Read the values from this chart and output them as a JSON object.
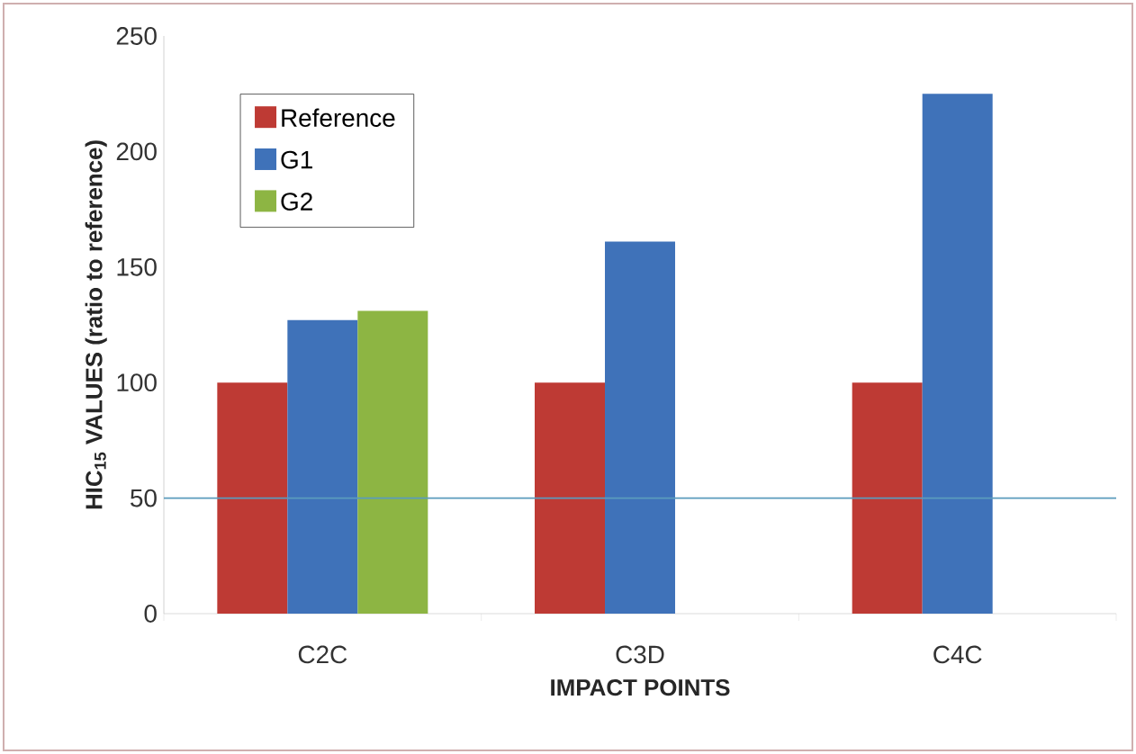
{
  "chart_data": {
    "type": "bar",
    "xlabel": "IMPACT POINTS",
    "ylabel": "HIC$_{15}$ VALUES (ratio to reference)",
    "categories": [
      "C2C",
      "C3D",
      "C4C"
    ],
    "series": [
      {
        "name": "Reference",
        "color": "#be3a34",
        "values": [
          100,
          100,
          100
        ]
      },
      {
        "name": "G1",
        "color": "#3f72b9",
        "values": [
          127,
          161,
          225
        ]
      },
      {
        "name": "G2",
        "color": "#8db543",
        "values": [
          131,
          null,
          null
        ]
      }
    ],
    "ylim": [
      0,
      250
    ],
    "yticks": [
      0,
      50,
      100,
      150,
      200,
      250
    ],
    "grid": false,
    "legend": "top left",
    "ref_lines": [
      {
        "axis": "y",
        "value": 50,
        "color": "#5b9bbd"
      }
    ]
  }
}
